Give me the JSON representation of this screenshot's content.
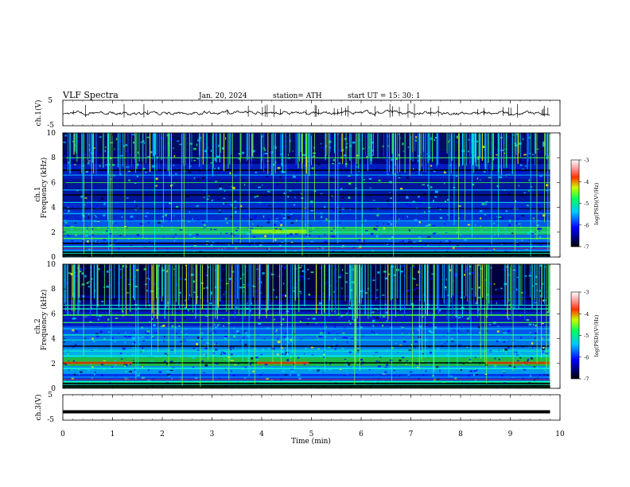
{
  "header": {
    "title": "VLF  Spectra",
    "date": "Jan. 20, 2024",
    "station": "station= ATH",
    "start": "start  UT  =    15: 30: 1"
  },
  "chart_data": [
    {
      "type": "line",
      "name": "ch1-waveform",
      "ylabel": "ch.1(V)",
      "ylim": [
        -5,
        5
      ],
      "yticks": [
        "5",
        "-5"
      ],
      "xlim": [
        0,
        10
      ]
    },
    {
      "type": "heatmap",
      "name": "ch1-spectrogram",
      "ylabel": "ch.1\nFrequency (kHz)",
      "ylim": [
        0,
        10
      ],
      "yticks": [
        "0",
        "2",
        "4",
        "6",
        "8",
        "10"
      ],
      "xlim": [
        0,
        10
      ],
      "colorbar": {
        "label": "log(PSD)(V²/Hz)",
        "range": [
          -7,
          -3
        ],
        "ticks": [
          "-3",
          "-4",
          "-5",
          "-6",
          "-7"
        ]
      }
    },
    {
      "type": "heatmap",
      "name": "ch2-spectrogram",
      "ylabel": "ch.2\nFrequency (kHz)",
      "ylim": [
        0,
        10
      ],
      "yticks": [
        "0",
        "2",
        "4",
        "6",
        "8",
        "10"
      ],
      "xlim": [
        0,
        10
      ],
      "colorbar": {
        "label": "log(PSD)(V²/Hz)",
        "range": [
          -7,
          -3
        ],
        "ticks": [
          "-3",
          "-4",
          "-5",
          "-6",
          "-7"
        ]
      }
    },
    {
      "type": "line",
      "name": "ch3-waveform",
      "ylabel": "ch.3(V)",
      "ylim": [
        -5,
        5
      ],
      "yticks": [
        "5",
        "-5"
      ],
      "xlim": [
        0,
        10
      ],
      "level": -1.7
    }
  ],
  "xaxis": {
    "label": "Time  (min)",
    "ticks": [
      "0",
      "1",
      "2",
      "3",
      "4",
      "5",
      "6",
      "7",
      "8",
      "9",
      "10"
    ],
    "range": [
      0,
      10
    ],
    "data_end": 9.8
  },
  "colors": {
    "spectro_base": "#00006a",
    "band_green": "#22dd66",
    "trace": "#000000"
  }
}
